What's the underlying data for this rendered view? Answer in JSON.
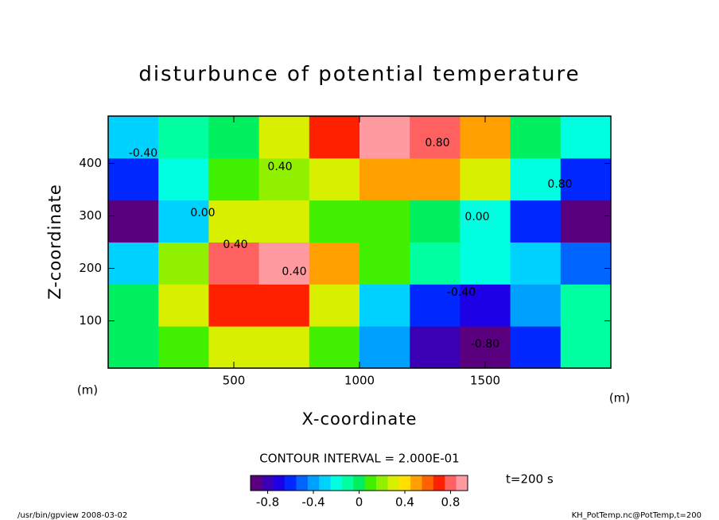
{
  "chart_data": {
    "type": "contour",
    "title": "disturbunce of potential temperature",
    "x_label": "X-coordinate",
    "y_label": "Z-coordinate",
    "x_unit": "(m)",
    "y_unit": "(m)",
    "x": [
      100,
      300,
      500,
      700,
      900,
      1100,
      1300,
      1500,
      1700,
      1900
    ],
    "z": [
      50,
      130,
      210,
      290,
      370,
      450
    ],
    "values": [
      [
        0.0,
        0.1,
        0.3,
        0.3,
        0.1,
        -0.4,
        -0.8,
        -0.85,
        -0.6,
        -0.1
      ],
      [
        0.0,
        0.3,
        0.7,
        0.65,
        0.3,
        -0.3,
        -0.6,
        -0.65,
        -0.4,
        -0.1
      ],
      [
        -0.3,
        0.2,
        0.75,
        0.85,
        0.5,
        0.1,
        -0.1,
        -0.25,
        -0.3,
        -0.5
      ],
      [
        -0.85,
        -0.3,
        0.3,
        0.25,
        0.1,
        0.05,
        0.0,
        -0.2,
        -0.6,
        -0.9
      ],
      [
        -0.6,
        -0.2,
        0.05,
        0.15,
        0.3,
        0.5,
        0.5,
        0.3,
        -0.2,
        -0.6
      ],
      [
        -0.3,
        -0.1,
        0.0,
        0.3,
        0.7,
        0.9,
        0.75,
        0.45,
        0.0,
        -0.2
      ]
    ],
    "xlim": [
      0,
      2000
    ],
    "ylim": [
      10,
      490
    ],
    "xticks": [
      500,
      1000,
      1500
    ],
    "yticks": [
      100,
      200,
      300,
      400
    ],
    "contour_labels": [
      {
        "value": -0.4,
        "label": "-0.40"
      },
      {
        "value": 0.8,
        "label": "0.80"
      },
      {
        "value": 0.4,
        "label": "0.40"
      },
      {
        "value": 0.0,
        "label": "0.00"
      },
      {
        "value": 0.0,
        "label": "0.00"
      },
      {
        "value": 0.4,
        "label": "0.40"
      },
      {
        "value": 0.4,
        "label": "0.40"
      },
      {
        "value": 0.8,
        "label": "0.80"
      },
      {
        "value": -0.4,
        "label": "-0.40"
      },
      {
        "value": -0.8,
        "label": "-0.80"
      }
    ],
    "contour_interval": "CONTOUR INTERVAL = 2.000E-01",
    "time_label": "t=200 s",
    "colorbar": {
      "lim": [
        -0.95,
        0.95
      ],
      "ticks": [
        -0.8,
        -0.4,
        0,
        0.4,
        0.8
      ],
      "colors": [
        "#5a007f",
        "#3c00b4",
        "#1e00e6",
        "#0028ff",
        "#0064ff",
        "#00a0ff",
        "#00d2ff",
        "#00ffe0",
        "#00ffa0",
        "#00f060",
        "#40f000",
        "#90f000",
        "#d8f000",
        "#ffe000",
        "#ffa000",
        "#ff6000",
        "#ff2000",
        "#ff6060",
        "#ff9aa0"
      ]
    },
    "footer_left": "/usr/bin/gpview   2008-03-02",
    "footer_right": "KH_PotTemp.nc@PotTemp,t=200"
  }
}
